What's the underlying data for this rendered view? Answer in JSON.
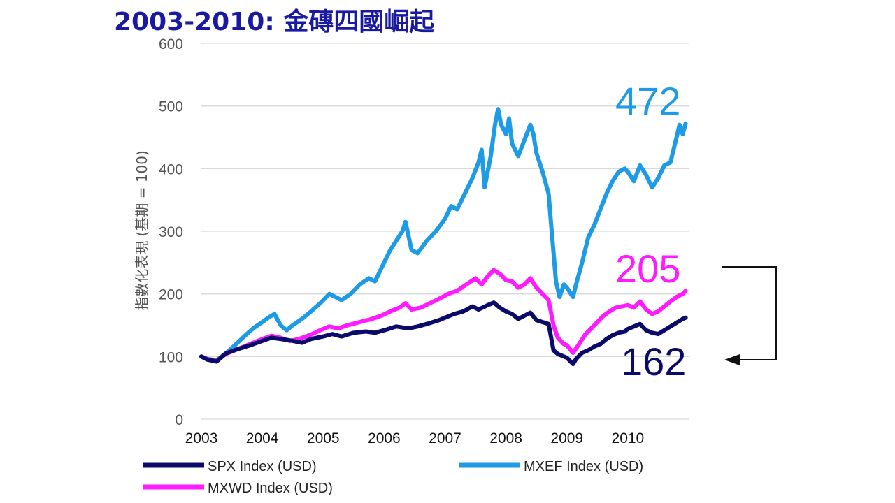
{
  "title": "2003-2010: 金磚四國崛起",
  "colors": {
    "spx": "#0a0a6b",
    "mxef": "#1e9be6",
    "mxwd": "#ff1aff",
    "title": "#1a1aa0"
  },
  "chart_data": {
    "type": "line",
    "title": "2003-2010: 金磚四國崛起",
    "ylabel": "指數化表現 (基期 = 100)",
    "xlabel": "",
    "ylim": [
      0,
      600
    ],
    "yticks": [
      "0",
      "100",
      "200",
      "300",
      "400",
      "500",
      "600"
    ],
    "xlim": [
      2003.0,
      2011.0
    ],
    "xticks": [
      "2003",
      "2004",
      "2005",
      "2006",
      "2007",
      "2008",
      "2009",
      "2010"
    ],
    "grid": true,
    "legend": "bottom",
    "series": [
      {
        "name": "SPX Index (USD)",
        "color": "#0a0a6b",
        "end_label": "162",
        "points": [
          [
            2003.0,
            100
          ],
          [
            2003.1,
            95
          ],
          [
            2003.25,
            92
          ],
          [
            2003.4,
            105
          ],
          [
            2003.6,
            112
          ],
          [
            2003.8,
            118
          ],
          [
            2004.0,
            125
          ],
          [
            2004.15,
            130
          ],
          [
            2004.3,
            128
          ],
          [
            2004.5,
            125
          ],
          [
            2004.65,
            122
          ],
          [
            2004.8,
            128
          ],
          [
            2005.0,
            132
          ],
          [
            2005.15,
            136
          ],
          [
            2005.3,
            132
          ],
          [
            2005.5,
            138
          ],
          [
            2005.7,
            140
          ],
          [
            2005.85,
            138
          ],
          [
            2006.0,
            142
          ],
          [
            2006.2,
            148
          ],
          [
            2006.4,
            145
          ],
          [
            2006.55,
            148
          ],
          [
            2006.7,
            152
          ],
          [
            2006.9,
            158
          ],
          [
            2007.0,
            162
          ],
          [
            2007.15,
            168
          ],
          [
            2007.3,
            172
          ],
          [
            2007.45,
            180
          ],
          [
            2007.55,
            175
          ],
          [
            2007.7,
            182
          ],
          [
            2007.8,
            186
          ],
          [
            2007.9,
            178
          ],
          [
            2008.0,
            172
          ],
          [
            2008.1,
            168
          ],
          [
            2008.2,
            160
          ],
          [
            2008.3,
            165
          ],
          [
            2008.4,
            170
          ],
          [
            2008.5,
            158
          ],
          [
            2008.6,
            155
          ],
          [
            2008.7,
            152
          ],
          [
            2008.78,
            110
          ],
          [
            2008.85,
            104
          ],
          [
            2008.95,
            100
          ],
          [
            2009.0,
            98
          ],
          [
            2009.1,
            88
          ],
          [
            2009.15,
            96
          ],
          [
            2009.25,
            106
          ],
          [
            2009.35,
            110
          ],
          [
            2009.45,
            116
          ],
          [
            2009.55,
            120
          ],
          [
            2009.65,
            128
          ],
          [
            2009.75,
            134
          ],
          [
            2009.85,
            138
          ],
          [
            2009.95,
            140
          ],
          [
            2010.0,
            144
          ],
          [
            2010.1,
            148
          ],
          [
            2010.2,
            152
          ],
          [
            2010.3,
            142
          ],
          [
            2010.4,
            138
          ],
          [
            2010.5,
            136
          ],
          [
            2010.6,
            142
          ],
          [
            2010.7,
            148
          ],
          [
            2010.8,
            154
          ],
          [
            2010.9,
            160
          ],
          [
            2010.95,
            162
          ]
        ]
      },
      {
        "name": "MXEF Index (USD)",
        "color": "#1e9be6",
        "end_label": "472",
        "points": [
          [
            2003.0,
            100
          ],
          [
            2003.1,
            96
          ],
          [
            2003.25,
            94
          ],
          [
            2003.4,
            105
          ],
          [
            2003.55,
            118
          ],
          [
            2003.7,
            132
          ],
          [
            2003.85,
            145
          ],
          [
            2004.0,
            155
          ],
          [
            2004.1,
            162
          ],
          [
            2004.2,
            168
          ],
          [
            2004.3,
            150
          ],
          [
            2004.4,
            142
          ],
          [
            2004.5,
            150
          ],
          [
            2004.65,
            160
          ],
          [
            2004.8,
            172
          ],
          [
            2004.95,
            185
          ],
          [
            2005.1,
            200
          ],
          [
            2005.2,
            195
          ],
          [
            2005.3,
            190
          ],
          [
            2005.45,
            200
          ],
          [
            2005.6,
            215
          ],
          [
            2005.75,
            225
          ],
          [
            2005.85,
            220
          ],
          [
            2006.0,
            250
          ],
          [
            2006.1,
            270
          ],
          [
            2006.2,
            285
          ],
          [
            2006.3,
            300
          ],
          [
            2006.35,
            315
          ],
          [
            2006.45,
            270
          ],
          [
            2006.55,
            265
          ],
          [
            2006.7,
            285
          ],
          [
            2006.85,
            300
          ],
          [
            2007.0,
            320
          ],
          [
            2007.1,
            340
          ],
          [
            2007.2,
            335
          ],
          [
            2007.3,
            355
          ],
          [
            2007.45,
            385
          ],
          [
            2007.55,
            410
          ],
          [
            2007.6,
            430
          ],
          [
            2007.65,
            370
          ],
          [
            2007.75,
            420
          ],
          [
            2007.82,
            470
          ],
          [
            2007.87,
            495
          ],
          [
            2007.92,
            470
          ],
          [
            2008.0,
            455
          ],
          [
            2008.05,
            480
          ],
          [
            2008.1,
            440
          ],
          [
            2008.2,
            420
          ],
          [
            2008.3,
            445
          ],
          [
            2008.4,
            470
          ],
          [
            2008.45,
            455
          ],
          [
            2008.5,
            425
          ],
          [
            2008.6,
            395
          ],
          [
            2008.7,
            360
          ],
          [
            2008.75,
            300
          ],
          [
            2008.82,
            220
          ],
          [
            2008.88,
            195
          ],
          [
            2008.95,
            215
          ],
          [
            2009.0,
            210
          ],
          [
            2009.1,
            195
          ],
          [
            2009.15,
            215
          ],
          [
            2009.25,
            250
          ],
          [
            2009.35,
            290
          ],
          [
            2009.45,
            310
          ],
          [
            2009.55,
            335
          ],
          [
            2009.65,
            360
          ],
          [
            2009.75,
            380
          ],
          [
            2009.85,
            395
          ],
          [
            2009.95,
            400
          ],
          [
            2010.0,
            395
          ],
          [
            2010.1,
            380
          ],
          [
            2010.2,
            405
          ],
          [
            2010.3,
            390
          ],
          [
            2010.4,
            370
          ],
          [
            2010.5,
            385
          ],
          [
            2010.6,
            405
          ],
          [
            2010.7,
            410
          ],
          [
            2010.75,
            430
          ],
          [
            2010.8,
            450
          ],
          [
            2010.85,
            470
          ],
          [
            2010.9,
            455
          ],
          [
            2010.95,
            472
          ]
        ]
      },
      {
        "name": "MXWD Index (USD)",
        "color": "#ff1aff",
        "end_label": "205",
        "points": [
          [
            2003.0,
            100
          ],
          [
            2003.1,
            96
          ],
          [
            2003.25,
            93
          ],
          [
            2003.4,
            104
          ],
          [
            2003.6,
            112
          ],
          [
            2003.8,
            120
          ],
          [
            2004.0,
            128
          ],
          [
            2004.15,
            133
          ],
          [
            2004.3,
            130
          ],
          [
            2004.45,
            125
          ],
          [
            2004.6,
            128
          ],
          [
            2004.8,
            135
          ],
          [
            2004.95,
            142
          ],
          [
            2005.1,
            148
          ],
          [
            2005.25,
            145
          ],
          [
            2005.4,
            150
          ],
          [
            2005.6,
            155
          ],
          [
            2005.8,
            160
          ],
          [
            2005.95,
            165
          ],
          [
            2006.1,
            172
          ],
          [
            2006.25,
            178
          ],
          [
            2006.35,
            185
          ],
          [
            2006.45,
            175
          ],
          [
            2006.6,
            178
          ],
          [
            2006.75,
            185
          ],
          [
            2006.9,
            192
          ],
          [
            2007.05,
            200
          ],
          [
            2007.2,
            205
          ],
          [
            2007.35,
            215
          ],
          [
            2007.5,
            225
          ],
          [
            2007.6,
            215
          ],
          [
            2007.7,
            228
          ],
          [
            2007.8,
            238
          ],
          [
            2007.9,
            232
          ],
          [
            2008.0,
            222
          ],
          [
            2008.1,
            220
          ],
          [
            2008.2,
            210
          ],
          [
            2008.3,
            215
          ],
          [
            2008.4,
            225
          ],
          [
            2008.5,
            210
          ],
          [
            2008.6,
            200
          ],
          [
            2008.7,
            190
          ],
          [
            2008.78,
            150
          ],
          [
            2008.85,
            130
          ],
          [
            2008.95,
            120
          ],
          [
            2009.0,
            118
          ],
          [
            2009.1,
            106
          ],
          [
            2009.2,
            120
          ],
          [
            2009.3,
            135
          ],
          [
            2009.4,
            145
          ],
          [
            2009.5,
            155
          ],
          [
            2009.6,
            165
          ],
          [
            2009.7,
            172
          ],
          [
            2009.8,
            178
          ],
          [
            2009.9,
            180
          ],
          [
            2010.0,
            182
          ],
          [
            2010.1,
            178
          ],
          [
            2010.2,
            188
          ],
          [
            2010.3,
            175
          ],
          [
            2010.4,
            168
          ],
          [
            2010.5,
            172
          ],
          [
            2010.6,
            180
          ],
          [
            2010.7,
            188
          ],
          [
            2010.8,
            195
          ],
          [
            2010.9,
            200
          ],
          [
            2010.95,
            205
          ]
        ]
      }
    ]
  }
}
